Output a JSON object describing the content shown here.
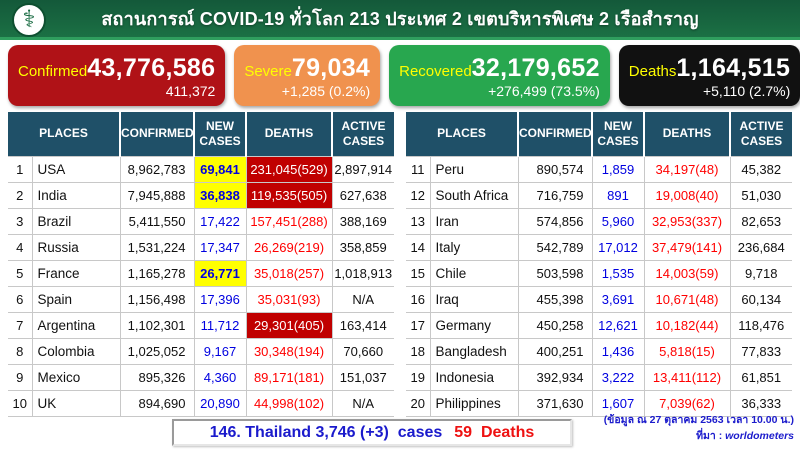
{
  "header": {
    "title": "สถานการณ์ COVID-19 ทั่วโลก 213 ประเทศ 2 เขตบริหารพิเศษ 2 เรือสำราญ"
  },
  "cards": [
    {
      "label": "Confirmed",
      "value": "43,776,586",
      "sub": "411,372",
      "bg": "#b01217"
    },
    {
      "label": "Severe",
      "value": "79,034",
      "sub": "+1,285 (0.2%)",
      "bg": "#f0924e"
    },
    {
      "label": "Recovered",
      "value": "32,179,652",
      "sub": "+276,499 (73.5%)",
      "bg": "#28a74f"
    },
    {
      "label": "Deaths",
      "value": "1,164,515",
      "sub": "+5,110 (2.7%)",
      "bg": "#111111"
    }
  ],
  "chart_data": {
    "type": "table",
    "columns": [
      "PLACES",
      "CONFIRMED",
      "NEW CASES",
      "DEATHS",
      "ACTIVE CASES"
    ],
    "left_rows": [
      {
        "rank": "1",
        "place": "USA",
        "confirmed": "8,962,783",
        "new_cases": "69,841",
        "new_highlight": true,
        "deaths": "231,045(529)",
        "deaths_highlight": true,
        "active": "2,897,914"
      },
      {
        "rank": "2",
        "place": "India",
        "confirmed": "7,945,888",
        "new_cases": "36,838",
        "new_highlight": true,
        "deaths": "119,535(505)",
        "deaths_highlight": true,
        "active": "627,638"
      },
      {
        "rank": "3",
        "place": "Brazil",
        "confirmed": "5,411,550",
        "new_cases": "17,422",
        "new_highlight": false,
        "deaths": "157,451(288)",
        "deaths_highlight": false,
        "active": "388,169"
      },
      {
        "rank": "4",
        "place": "Russia",
        "confirmed": "1,531,224",
        "new_cases": "17,347",
        "new_highlight": false,
        "deaths": "26,269(219)",
        "deaths_highlight": false,
        "active": "358,859"
      },
      {
        "rank": "5",
        "place": "France",
        "confirmed": "1,165,278",
        "new_cases": "26,771",
        "new_highlight": true,
        "deaths": "35,018(257)",
        "deaths_highlight": false,
        "active": "1,018,913"
      },
      {
        "rank": "6",
        "place": "Spain",
        "confirmed": "1,156,498",
        "new_cases": "17,396",
        "new_highlight": false,
        "deaths": "35,031(93)",
        "deaths_highlight": false,
        "active": "N/A"
      },
      {
        "rank": "7",
        "place": "Argentina",
        "confirmed": "1,102,301",
        "new_cases": "11,712",
        "new_highlight": false,
        "deaths": "29,301(405)",
        "deaths_highlight": true,
        "active": "163,414"
      },
      {
        "rank": "8",
        "place": "Colombia",
        "confirmed": "1,025,052",
        "new_cases": "9,167",
        "new_highlight": false,
        "deaths": "30,348(194)",
        "deaths_highlight": false,
        "active": "70,660"
      },
      {
        "rank": "9",
        "place": "Mexico",
        "confirmed": "895,326",
        "new_cases": "4,360",
        "new_highlight": false,
        "deaths": "89,171(181)",
        "deaths_highlight": false,
        "active": "151,037"
      },
      {
        "rank": "10",
        "place": "UK",
        "confirmed": "894,690",
        "new_cases": "20,890",
        "new_highlight": false,
        "deaths": "44,998(102)",
        "deaths_highlight": false,
        "active": "N/A"
      }
    ],
    "right_rows": [
      {
        "rank": "11",
        "place": "Peru",
        "confirmed": "890,574",
        "new_cases": "1,859",
        "new_highlight": false,
        "deaths": "34,197(48)",
        "deaths_highlight": false,
        "active": "45,382"
      },
      {
        "rank": "12",
        "place": "South Africa",
        "confirmed": "716,759",
        "new_cases": "891",
        "new_highlight": false,
        "deaths": "19,008(40)",
        "deaths_highlight": false,
        "active": "51,030"
      },
      {
        "rank": "13",
        "place": "Iran",
        "confirmed": "574,856",
        "new_cases": "5,960",
        "new_highlight": false,
        "deaths": "32,953(337)",
        "deaths_highlight": false,
        "active": "82,653"
      },
      {
        "rank": "14",
        "place": "Italy",
        "confirmed": "542,789",
        "new_cases": "17,012",
        "new_highlight": false,
        "deaths": "37,479(141)",
        "deaths_highlight": false,
        "active": "236,684"
      },
      {
        "rank": "15",
        "place": "Chile",
        "confirmed": "503,598",
        "new_cases": "1,535",
        "new_highlight": false,
        "deaths": "14,003(59)",
        "deaths_highlight": false,
        "active": "9,718"
      },
      {
        "rank": "16",
        "place": "Iraq",
        "confirmed": "455,398",
        "new_cases": "3,691",
        "new_highlight": false,
        "deaths": "10,671(48)",
        "deaths_highlight": false,
        "active": "60,134"
      },
      {
        "rank": "17",
        "place": "Germany",
        "confirmed": "450,258",
        "new_cases": "12,621",
        "new_highlight": false,
        "deaths": "10,182(44)",
        "deaths_highlight": false,
        "active": "118,476"
      },
      {
        "rank": "18",
        "place": "Bangladesh",
        "confirmed": "400,251",
        "new_cases": "1,436",
        "new_highlight": false,
        "deaths": "5,818(15)",
        "deaths_highlight": false,
        "active": "77,833"
      },
      {
        "rank": "19",
        "place": "Indonesia",
        "confirmed": "392,934",
        "new_cases": "3,222",
        "new_highlight": false,
        "deaths": "13,411(112)",
        "deaths_highlight": false,
        "active": "61,851"
      },
      {
        "rank": "20",
        "place": "Philippines",
        "confirmed": "371,630",
        "new_cases": "1,607",
        "new_highlight": false,
        "deaths": "7,039(62)",
        "deaths_highlight": false,
        "active": "36,333"
      }
    ]
  },
  "footer": {
    "thailand_cases": "146. Thailand 3,746 (+3)  cases",
    "thailand_deaths": "59  Deaths",
    "data_note": "(ข้อมูล ณ 27 ตุลาคม 2563 เวลา 10.00 น.)",
    "source_label": "ที่มา : ",
    "source_name": "worldometers"
  },
  "colors": {
    "header_green": "#15693f",
    "confirmed_red": "#b01217",
    "severe_orange": "#f0924e",
    "recovered_green": "#28a74f",
    "deaths_black": "#111111",
    "table_header_navy": "#1f5068",
    "new_cases_blue": "#0000e0",
    "deaths_text_red": "#ff0000",
    "highlight_yellow": "#ffff00",
    "highlight_dark_red": "#c00000",
    "footer_blue": "#1a1acc"
  }
}
